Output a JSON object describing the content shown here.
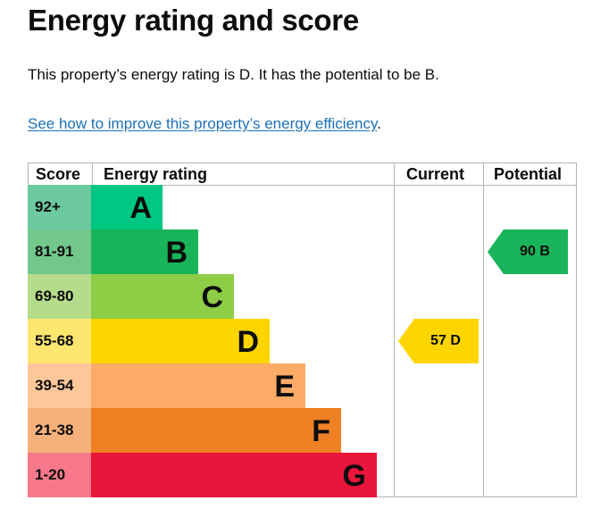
{
  "page": {
    "title": "Energy rating and score",
    "lead": "This property’s energy rating is D. It has the potential to be B.",
    "link_text": "See how to improve this property’s energy efficiency",
    "link_suffix": "."
  },
  "table": {
    "headers": {
      "score": "Score",
      "rating": "Energy rating",
      "current": "Current",
      "potential": "Potential"
    },
    "rows": [
      {
        "score": "92+",
        "letter": "A",
        "score_bg": "#6cc9a0",
        "bar_color": "#00c781"
      },
      {
        "score": "81-91",
        "letter": "B",
        "score_bg": "#72c78a",
        "bar_color": "#19b459"
      },
      {
        "score": "69-80",
        "letter": "C",
        "score_bg": "#b5dc8a",
        "bar_color": "#8dce46"
      },
      {
        "score": "55-68",
        "letter": "D",
        "score_bg": "#ffe66e",
        "bar_color": "#ffd500"
      },
      {
        "score": "39-54",
        "letter": "E",
        "score_bg": "#ffc79a",
        "bar_color": "#fcaa65"
      },
      {
        "score": "21-38",
        "letter": "F",
        "score_bg": "#f6b07a",
        "bar_color": "#ef8023"
      },
      {
        "score": "1-20",
        "letter": "G",
        "score_bg": "#f6788a",
        "bar_color": "#e9153b"
      }
    ],
    "current": {
      "score": 57,
      "letter": "D",
      "label": "57 D",
      "color": "#ffd500"
    },
    "potential": {
      "score": 90,
      "letter": "B",
      "label": "90 B",
      "color": "#19b459"
    }
  }
}
